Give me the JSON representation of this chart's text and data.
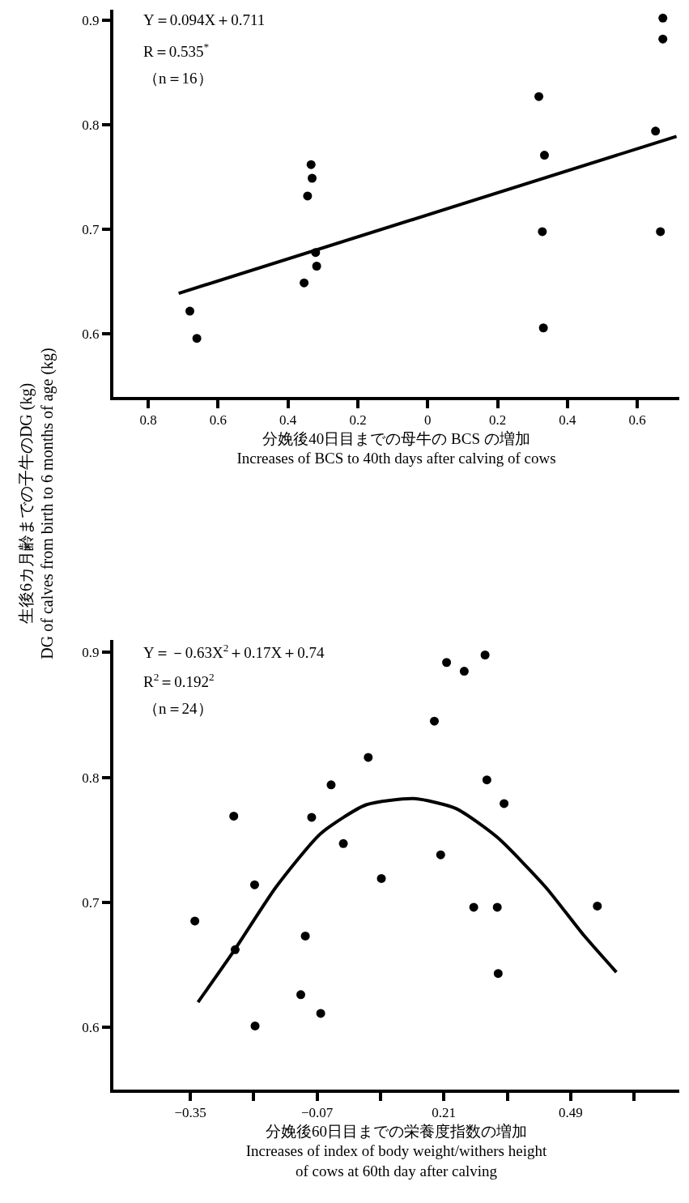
{
  "chart_data": [
    {
      "type": "scatter",
      "ylabel": "生後6カ月齢までの子牛のDG (kg)\nDG of calves from birth to 6 months of age (kg)",
      "xlabel": "分娩後40日目までの母牛の BCS の増加\nIncreases of BCS to 40th days after calving of cows",
      "annotations": [
        "Y＝0.094X＋0.711",
        "R＝0.535$^{*}$",
        "（n＝16）"
      ],
      "xlim": [
        -0.9,
        0.72
      ],
      "ylim": [
        0.54,
        0.91
      ],
      "xticks": [
        {
          "value": -0.8,
          "label": "0.8"
        },
        {
          "value": -0.6,
          "label": "0.6"
        },
        {
          "value": -0.4,
          "label": "0.4"
        },
        {
          "value": -0.2,
          "label": "0.2"
        },
        0,
        {
          "value": 0.2,
          "label": "0.2"
        },
        {
          "value": 0.4,
          "label": "0.4"
        },
        {
          "value": 0.6,
          "label": "0.6"
        }
      ],
      "yticks": [
        0.6,
        0.7,
        0.8,
        0.9
      ],
      "series": [
        {
          "color": "#000000",
          "marker": "circle",
          "x": [
            -0.681,
            -0.661,
            -0.354,
            -0.344,
            -0.334,
            -0.331,
            -0.321,
            -0.318,
            0.318,
            0.334,
            0.328,
            0.331,
            0.652,
            0.673,
            0.673,
            0.666
          ],
          "values": [
            0.622,
            0.596,
            0.649,
            0.732,
            0.762,
            0.749,
            0.678,
            0.665,
            0.827,
            0.771,
            0.698,
            0.606,
            0.794,
            0.902,
            0.882,
            0.698
          ]
        },
        {
          "type": "line",
          "color": "#000000",
          "marker": "none",
          "line_style": "solid",
          "x": [
            -0.713,
            0.712
          ],
          "values": [
            0.639,
            0.789
          ]
        }
      ]
    },
    {
      "type": "scatter",
      "xlabel": "分娩後60日目までの栄養度指数の増加\nIncreases of index of body weight/withers height\nof cows at 60th day after calving",
      "annotations": [
        "Y＝－0.63X$^{2}$＋0.17X＋0.74",
        "R$^{2}$＝0.192$^{2}$",
        "（n＝24）"
      ],
      "xlim": [
        -0.52,
        0.73
      ],
      "ylim": [
        0.55,
        0.91
      ],
      "xticks": [
        {
          "value": -0.35,
          "label": "−0.35"
        },
        {
          "value": -0.21,
          "label": null
        },
        {
          "value": -0.07,
          "label": "−0.07"
        },
        {
          "value": 0.07,
          "label": null
        },
        0.21,
        {
          "value": 0.35,
          "label": null
        },
        0.49,
        {
          "value": 0.63,
          "label": null
        }
      ],
      "yticks": [
        0.6,
        0.7,
        0.8,
        0.9
      ],
      "series": [
        {
          "color": "#000000",
          "marker": "circle",
          "x": [
            -0.34,
            -0.254,
            -0.251,
            -0.208,
            -0.207,
            -0.106,
            -0.096,
            -0.082,
            -0.062,
            -0.039,
            -0.012,
            0.043,
            0.072,
            0.189,
            0.203,
            0.216,
            0.255,
            0.276,
            0.301,
            0.305,
            0.328,
            0.33,
            0.343,
            0.549
          ],
          "values": [
            0.685,
            0.769,
            0.662,
            0.714,
            0.601,
            0.626,
            0.673,
            0.768,
            0.611,
            0.794,
            0.747,
            0.816,
            0.719,
            0.845,
            0.738,
            0.892,
            0.885,
            0.696,
            0.898,
            0.798,
            0.696,
            0.643,
            0.779,
            0.697
          ]
        },
        {
          "type": "line",
          "color": "#000000",
          "marker": "none",
          "line_style": "solid",
          "x": [
            -0.333,
            -0.252,
            -0.161,
            -0.062,
            0.038,
            0.144,
            0.237,
            0.328,
            0.435,
            0.518,
            0.591
          ],
          "values": [
            0.62,
            0.662,
            0.712,
            0.755,
            0.778,
            0.783,
            0.775,
            0.752,
            0.712,
            0.674,
            0.644
          ]
        }
      ]
    }
  ]
}
